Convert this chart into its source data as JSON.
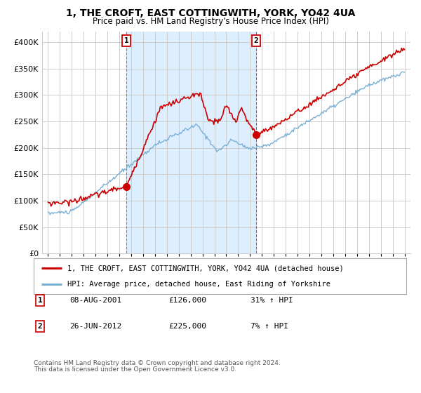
{
  "title": "1, THE CROFT, EAST COTTINGWITH, YORK, YO42 4UA",
  "subtitle": "Price paid vs. HM Land Registry's House Price Index (HPI)",
  "background_color": "#ffffff",
  "plot_bg_color": "#ffffff",
  "grid_color": "#cccccc",
  "highlight_bg_color": "#ddeeff",
  "sale1_year": 2001.6,
  "sale1_price": 126000,
  "sale2_year": 2012.5,
  "sale2_price": 225000,
  "sale1_date": "08-AUG-2001",
  "sale2_date": "26-JUN-2012",
  "sale1_hpi": "31% ↑ HPI",
  "sale2_hpi": "7% ↑ HPI",
  "ylim": [
    0,
    420000
  ],
  "yticks": [
    0,
    50000,
    100000,
    150000,
    200000,
    250000,
    300000,
    350000,
    400000
  ],
  "xlim_start": 1994.5,
  "xlim_end": 2025.5,
  "legend_line1": "1, THE CROFT, EAST COTTINGWITH, YORK, YO42 4UA (detached house)",
  "legend_line2": "HPI: Average price, detached house, East Riding of Yorkshire",
  "footer1": "Contains HM Land Registry data © Crown copyright and database right 2024.",
  "footer2": "This data is licensed under the Open Government Licence v3.0.",
  "red_line_color": "#cc0000",
  "blue_line_color": "#7ab0d4"
}
